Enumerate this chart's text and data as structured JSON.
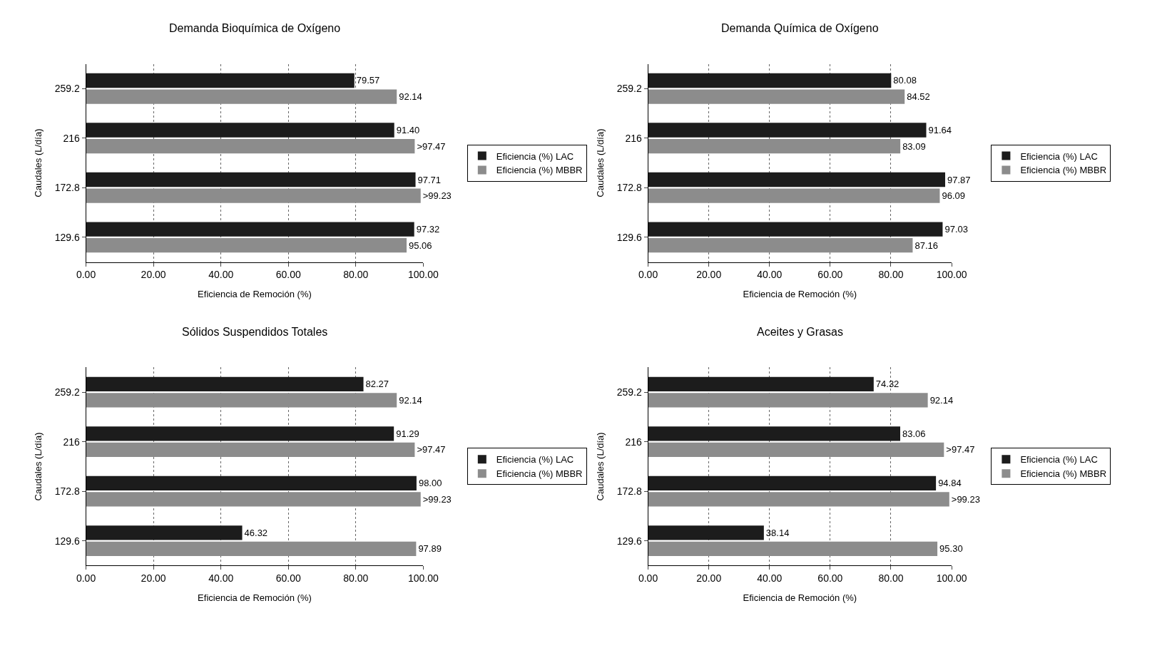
{
  "chart_data": [
    {
      "type": "bar",
      "orientation": "horizontal",
      "title": "Demanda Bioquímica de Oxígeno",
      "xlabel": "Eficiencia de Remoción (%)",
      "ylabel": "Caudales (L/día)",
      "categories": [
        "259.2",
        "216",
        "172.8",
        "129.6"
      ],
      "xlim": [
        0,
        100
      ],
      "xticks": [
        {
          "value": 0,
          "label": "0.00"
        },
        {
          "value": 20,
          "label": "20.00"
        },
        {
          "value": 40,
          "label": "40.00"
        },
        {
          "value": 60,
          "label": "60.00"
        },
        {
          "value": 80,
          "label": "80.00"
        },
        {
          "value": 100,
          "label": "100.00"
        }
      ],
      "grid": true,
      "legend": "right",
      "series": [
        {
          "name": "Eficiencia (%) LAC",
          "color": "#1c1c1c",
          "values": [
            79.57,
            91.4,
            97.71,
            97.32
          ],
          "value_labels": [
            "79.57",
            "91.40",
            "97.71",
            "97.32"
          ]
        },
        {
          "name": "Eficiencia (%) MBBR",
          "color": "#8c8c8c",
          "values": [
            92.14,
            97.47,
            99.23,
            95.06
          ],
          "value_labels": [
            "92.14",
            ">97.47",
            ">99.23",
            "95.06"
          ]
        }
      ]
    },
    {
      "type": "bar",
      "orientation": "horizontal",
      "title": "Demanda Química de Oxígeno",
      "xlabel": "Eficiencia de Remoción (%)",
      "ylabel": "Caudales (L/día)",
      "categories": [
        "259.2",
        "216",
        "172.8",
        "129.6"
      ],
      "xlim": [
        0,
        100
      ],
      "xticks": [
        {
          "value": 0,
          "label": "0.00"
        },
        {
          "value": 20,
          "label": "20.00"
        },
        {
          "value": 40,
          "label": "40.00"
        },
        {
          "value": 60,
          "label": "60.00"
        },
        {
          "value": 80,
          "label": "80.00"
        },
        {
          "value": 100,
          "label": "100.00"
        }
      ],
      "grid": true,
      "legend": "right",
      "series": [
        {
          "name": "Eficiencia (%) LAC",
          "color": "#1c1c1c",
          "values": [
            80.08,
            91.64,
            97.87,
            97.03
          ],
          "value_labels": [
            "80.08",
            "91.64",
            "97.87",
            "97.03"
          ]
        },
        {
          "name": "Eficiencia (%) MBBR",
          "color": "#8c8c8c",
          "values": [
            84.52,
            83.09,
            96.09,
            87.16
          ],
          "value_labels": [
            "84.52",
            "83.09",
            "96.09",
            "87.16"
          ]
        }
      ]
    },
    {
      "type": "bar",
      "orientation": "horizontal",
      "title": "Sólidos Suspendidos Totales",
      "xlabel": "Eficiencia de Remoción (%)",
      "ylabel": "Caudales (L/día)",
      "categories": [
        "259.2",
        "216",
        "172.8",
        "129.6"
      ],
      "xlim": [
        0,
        100
      ],
      "xticks": [
        {
          "value": 0,
          "label": "0.00"
        },
        {
          "value": 20,
          "label": "20.00"
        },
        {
          "value": 40,
          "label": "40.00"
        },
        {
          "value": 60,
          "label": "60.00"
        },
        {
          "value": 80,
          "label": "80.00"
        },
        {
          "value": 100,
          "label": "100.00"
        }
      ],
      "grid": true,
      "legend": "right",
      "series": [
        {
          "name": "Eficiencia (%) LAC",
          "color": "#1c1c1c",
          "values": [
            82.27,
            91.29,
            98.0,
            46.32
          ],
          "value_labels": [
            "82.27",
            "91.29",
            "98.00",
            "46.32"
          ]
        },
        {
          "name": "Eficiencia (%) MBBR",
          "color": "#8c8c8c",
          "values": [
            92.14,
            97.47,
            99.23,
            97.89
          ],
          "value_labels": [
            "92.14",
            ">97.47",
            ">99.23",
            "97.89"
          ]
        }
      ]
    },
    {
      "type": "bar",
      "orientation": "horizontal",
      "title": "Aceites y Grasas",
      "xlabel": "Eficiencia de Remoción (%)",
      "ylabel": "Caudales (L/día)",
      "categories": [
        "259.2",
        "216",
        "172.8",
        "129.6"
      ],
      "xlim": [
        0,
        100
      ],
      "xticks": [
        {
          "value": 0,
          "label": "0.00"
        },
        {
          "value": 20,
          "label": "20.00"
        },
        {
          "value": 40,
          "label": "40.00"
        },
        {
          "value": 60,
          "label": "60.00"
        },
        {
          "value": 80,
          "label": "80.00"
        },
        {
          "value": 100,
          "label": "100.00"
        }
      ],
      "grid": true,
      "legend": "right",
      "series": [
        {
          "name": "Eficiencia (%) LAC",
          "color": "#1c1c1c",
          "values": [
            74.32,
            83.06,
            94.84,
            38.14
          ],
          "value_labels": [
            "74.32",
            "83.06",
            "94.84",
            "38.14"
          ]
        },
        {
          "name": "Eficiencia (%) MBBR",
          "color": "#8c8c8c",
          "values": [
            92.14,
            97.47,
            99.23,
            95.3
          ],
          "value_labels": [
            "92.14",
            ">97.47",
            ">99.23",
            "95.30"
          ]
        }
      ]
    }
  ]
}
